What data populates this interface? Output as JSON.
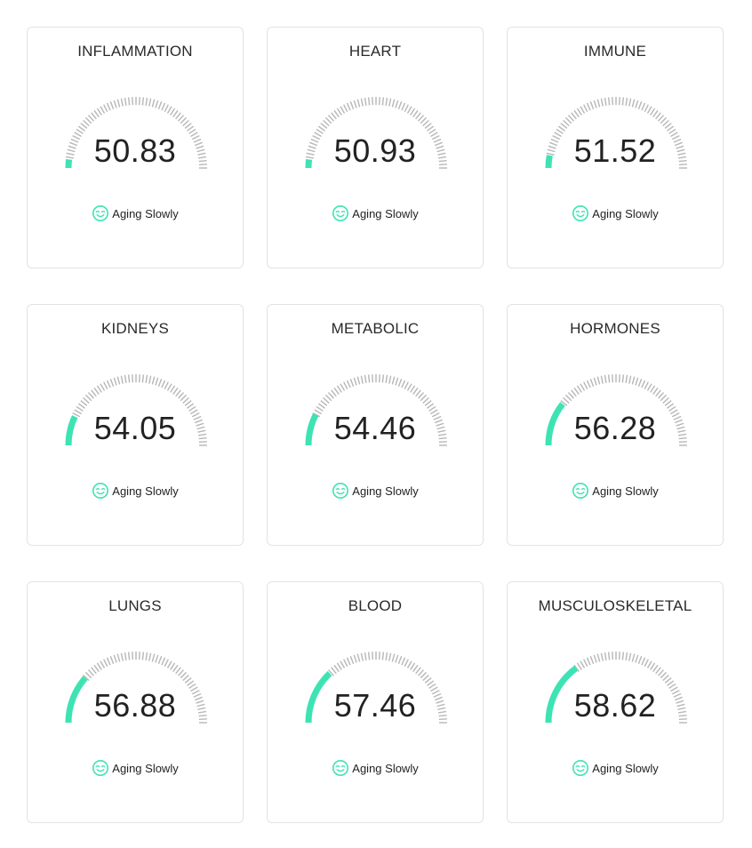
{
  "gauge_scale": {
    "min": 0,
    "max": 100
  },
  "colors": {
    "accent": "#3ee3b4",
    "tick": "#b7b7b7",
    "card_border": "#e3e3e3"
  },
  "status_icon": "smile-icon",
  "cards": [
    {
      "title": "INFLAMMATION",
      "value": "50.83",
      "fill": 0.04,
      "status": "Aging Slowly"
    },
    {
      "title": "HEART",
      "value": "50.93",
      "fill": 0.04,
      "status": "Aging Slowly"
    },
    {
      "title": "IMMUNE",
      "value": "51.52",
      "fill": 0.06,
      "status": "Aging Slowly"
    },
    {
      "title": "KIDNEYS",
      "value": "54.05",
      "fill": 0.14,
      "status": "Aging Slowly"
    },
    {
      "title": "METABOLIC",
      "value": "54.46",
      "fill": 0.15,
      "status": "Aging Slowly"
    },
    {
      "title": "HORMONES",
      "value": "56.28",
      "fill": 0.21,
      "status": "Aging Slowly"
    },
    {
      "title": "LUNGS",
      "value": "56.88",
      "fill": 0.23,
      "status": "Aging Slowly"
    },
    {
      "title": "BLOOD",
      "value": "57.46",
      "fill": 0.26,
      "status": "Aging Slowly"
    },
    {
      "title": "MUSCULOSKELETAL",
      "value": "58.62",
      "fill": 0.3,
      "status": "Aging Slowly"
    }
  ]
}
